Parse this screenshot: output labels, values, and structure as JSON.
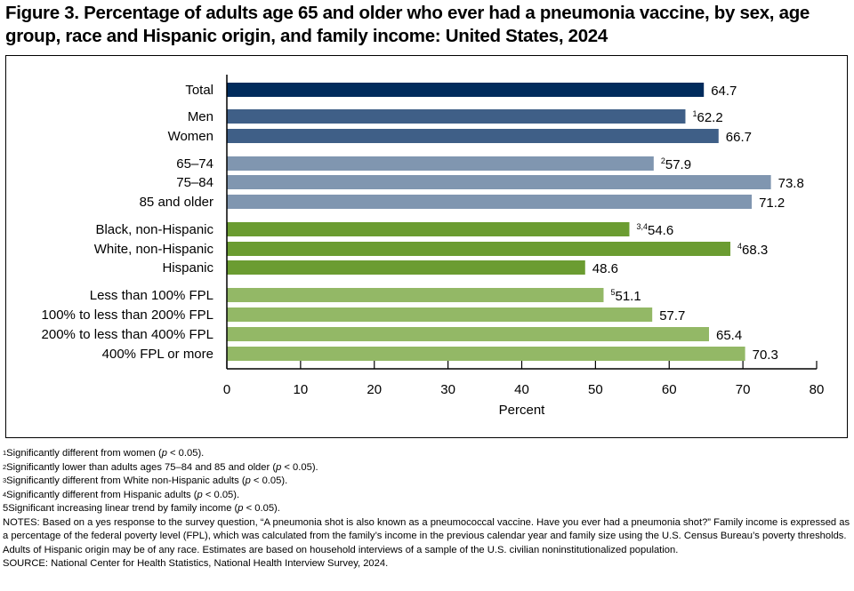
{
  "title": "Figure 3. Percentage of adults age 65 and older who ever had a pneumonia vaccine, by sex, age group, race and Hispanic origin, and family income: United States, 2024",
  "chart_data": {
    "type": "bar",
    "orientation": "horizontal",
    "title": "Figure 3. Percentage of adults age 65 and older who ever had a pneumonia vaccine, by sex, age group, race and Hispanic origin, and family income: United States, 2024",
    "xlabel": "Percent",
    "ylabel": "",
    "xlim": [
      0,
      80
    ],
    "xticks": [
      "0",
      "10",
      "20",
      "30",
      "40",
      "50",
      "60",
      "70",
      "80"
    ],
    "grid": false,
    "categories": [
      "Total",
      "Men",
      "Women",
      "65–74",
      "75–84",
      "85 and older",
      "Black, non-Hispanic",
      "White, non-Hispanic",
      "Hispanic",
      "Less than 100% FPL",
      "100% to less than 200% FPL",
      "200% to less than 400% FPL",
      "400% FPL or more"
    ],
    "values": [
      64.7,
      62.2,
      66.7,
      57.9,
      73.8,
      71.2,
      54.6,
      68.3,
      48.6,
      51.1,
      57.7,
      65.4,
      70.3
    ],
    "value_labels": [
      "64.7",
      "62.2",
      "66.7",
      "57.9",
      "73.8",
      "71.2",
      "54.6",
      "68.3",
      "48.6",
      "51.1",
      "57.7",
      "65.4",
      "70.3"
    ],
    "footnote_marks": [
      "",
      "1",
      "",
      "2",
      "",
      "",
      "3,4",
      "4",
      "",
      "5",
      "",
      "",
      ""
    ],
    "groups": [
      0,
      1,
      1,
      2,
      2,
      2,
      3,
      3,
      3,
      4,
      4,
      4,
      4
    ],
    "group_colors": [
      "#002b5c",
      "#3f5f87",
      "#8096b0",
      "#6b9c31",
      "#93b866"
    ]
  },
  "footnotes": [
    {
      "mark": "1",
      "text": "Significantly different from women (",
      "p": "p",
      "rest": " < 0.05)."
    },
    {
      "mark": "2",
      "text": "Significantly lower than adults ages 75–84 and 85 and older (",
      "p": "p",
      "rest": " < 0.05)."
    },
    {
      "mark": "3",
      "text": "Significantly different from White non-Hispanic adults (",
      "p": "p",
      "rest": " < 0.05)."
    },
    {
      "mark": "4",
      "text": "Significantly different from Hispanic adults (",
      "p": "p",
      "rest": " < 0.05)."
    },
    {
      "mark": "",
      "text": "5Significant increasing linear trend by family income (",
      "p": "p",
      "rest": " < 0.05)."
    }
  ],
  "notes": "NOTES: Based on a yes response to the survey question, “A pneumonia shot is also known as a pneumococcal vaccine. Have you ever had a pneumonia shot?” Family income is expressed as a percentage of the federal poverty level (FPL), which was calculated from the family’s income in the previous calendar year and family size using the U.S. Census Bureau’s poverty thresholds. Adults of Hispanic origin may be of any race. Estimates are based on household interviews of a sample of the U.S. civilian noninstitutionalized population.",
  "source": "SOURCE: National Center for Health Statistics, National Health Interview Survey, 2024."
}
